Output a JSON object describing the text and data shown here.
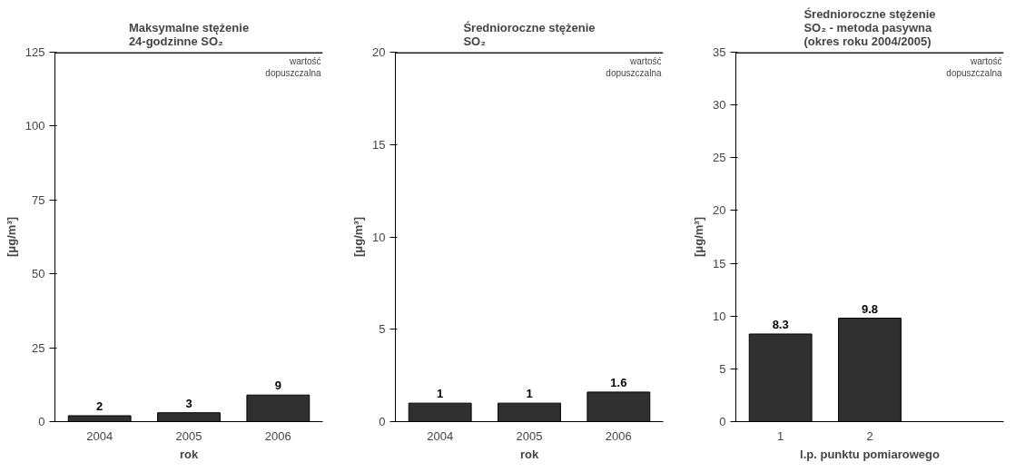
{
  "chart_data": [
    {
      "type": "bar",
      "title": "Maksymalne stężenie\n24-godzinne SO₂",
      "xlabel": "rok",
      "ylabel": "[μg/m³]",
      "categories": [
        "2004",
        "2005",
        "2006"
      ],
      "values": [
        2,
        3,
        9
      ],
      "color": "#303030",
      "ylim": [
        0,
        125
      ],
      "yticks": [
        0,
        25,
        50,
        75,
        100,
        125
      ],
      "data_labels": true,
      "ref_lines": [
        {
          "axis": "y",
          "value": 125,
          "label": "wartość\ndopuszczalna",
          "color": "#202020"
        }
      ]
    },
    {
      "type": "bar",
      "title": "Średnioroczne stężenie\nSO₂",
      "xlabel": "rok",
      "ylabel": "[μg/m³]",
      "categories": [
        "2004",
        "2005",
        "2006"
      ],
      "values": [
        1,
        1,
        1.6
      ],
      "color": "#303030",
      "ylim": [
        0,
        20
      ],
      "yticks": [
        0,
        5,
        10,
        15,
        20
      ],
      "data_labels": true,
      "ref_lines": [
        {
          "axis": "y",
          "value": 20,
          "label": "wartość\ndopuszczalna",
          "color": "#202020"
        }
      ]
    },
    {
      "type": "bar",
      "title": "Średnioroczne stężenie\nSO₂ - metoda pasywna\n(okres roku 2004/2005)",
      "xlabel": "l.p. punktu pomiarowego",
      "ylabel": "[μg/m³]",
      "categories": [
        "1",
        "2",
        null
      ],
      "values": [
        8.3,
        9.8,
        null
      ],
      "color": "#303030",
      "ylim": [
        0,
        35
      ],
      "yticks": [
        0,
        5,
        10,
        15,
        20,
        25,
        30,
        35
      ],
      "data_labels": true,
      "ref_lines": [
        {
          "axis": "y",
          "value": 35,
          "label": "wartość\ndopuszczalna",
          "color": "#202020"
        }
      ]
    }
  ]
}
